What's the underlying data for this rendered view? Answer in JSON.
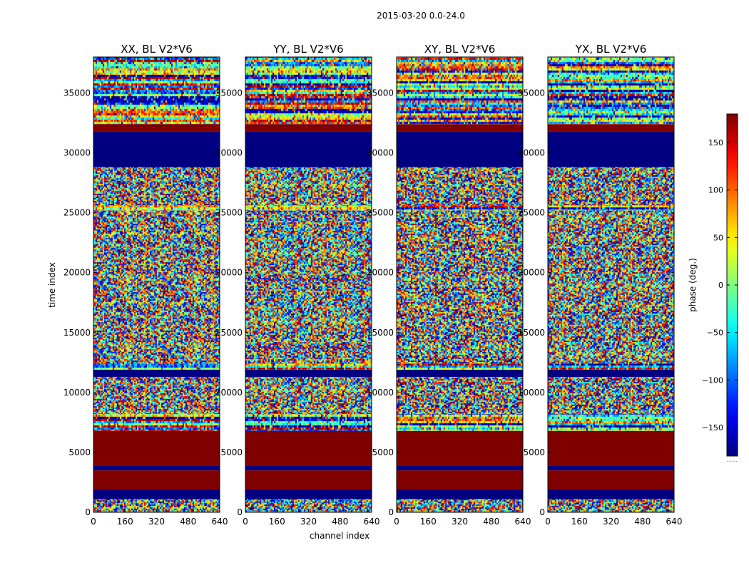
{
  "chart_data": {
    "type": "heatmap",
    "suptitle": "2015-03-20 0.0-24.0",
    "xlabel": "channel index",
    "ylabel": "time index",
    "xlim": [
      0,
      640
    ],
    "ylim": [
      0,
      38000
    ],
    "xticks": [
      0,
      160,
      320,
      480,
      640
    ],
    "yticks": [
      0,
      5000,
      10000,
      15000,
      20000,
      25000,
      30000,
      35000
    ],
    "colorbar": {
      "label": "phase (deg.)",
      "range": [
        -180,
        180
      ],
      "ticks": [
        -150,
        -100,
        -50,
        0,
        50,
        100,
        150
      ],
      "colormap": "jet",
      "footnote": "......"
    },
    "panels": [
      {
        "name": "XX",
        "title": "XX, BL V2*V6"
      },
      {
        "name": "YY",
        "title": "YY, BL V2*V6"
      },
      {
        "name": "XY",
        "title": "XY, BL V2*V6"
      },
      {
        "name": "YX",
        "title": "YX, BL V2*V6"
      }
    ],
    "bands": [
      {
        "from": 0,
        "to": 1100,
        "kind": "noise",
        "phase": null
      },
      {
        "from": 1100,
        "to": 1900,
        "kind": "solid",
        "phase": -180
      },
      {
        "from": 1900,
        "to": 3500,
        "kind": "solid",
        "phase": 180
      },
      {
        "from": 3500,
        "to": 3900,
        "kind": "solid",
        "phase": -180
      },
      {
        "from": 3900,
        "to": 6800,
        "kind": "solid",
        "phase": 180
      },
      {
        "from": 6800,
        "to": 8200,
        "kind": "stripes",
        "phase": null
      },
      {
        "from": 8200,
        "to": 11300,
        "kind": "noise",
        "phase": null
      },
      {
        "from": 11300,
        "to": 11900,
        "kind": "solid",
        "phase": -180
      },
      {
        "from": 11900,
        "to": 12400,
        "kind": "stripes",
        "phase": null
      },
      {
        "from": 12400,
        "to": 25200,
        "kind": "noise",
        "phase": null
      },
      {
        "from": 25200,
        "to": 25600,
        "kind": "stripes",
        "phase": null
      },
      {
        "from": 25600,
        "to": 28800,
        "kind": "noise",
        "phase": null
      },
      {
        "from": 28800,
        "to": 31800,
        "kind": "solid",
        "phase": -180
      },
      {
        "from": 31800,
        "to": 32400,
        "kind": "solid",
        "phase": 180
      },
      {
        "from": 32400,
        "to": 38000,
        "kind": "stripes",
        "phase": null
      }
    ],
    "summary": "Phase (degrees) of visibilities versus channel index and time index for baseline V2*V6 in four polarization products; blocks of constant phase near +/-180 deg separate noisy regions."
  }
}
